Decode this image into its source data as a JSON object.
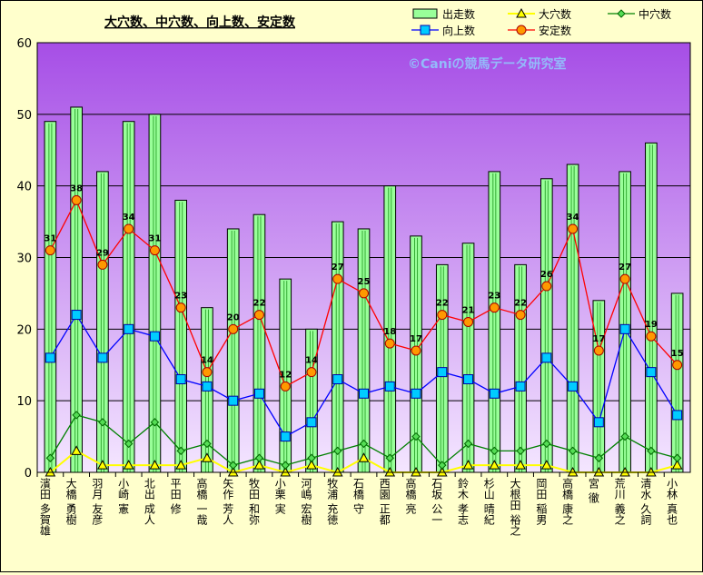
{
  "chart_data": {
    "type": "bar",
    "title": "大穴数、中穴数、向上数、安定数",
    "watermark": "©Caniの競馬データ研究室",
    "ylim": [
      0,
      60
    ],
    "yticks": [
      0,
      10,
      20,
      30,
      40,
      50,
      60
    ],
    "grid": true,
    "legend_position": "top-right",
    "categories": [
      "濱田 多賀雄",
      "大橋 勇樹",
      "羽月 友彦",
      "小崎 憲",
      "北出 成人",
      "平田 修",
      "高橋 一哉",
      "矢作 芳人",
      "牧田 和弥",
      "小栗 実",
      "河嶋 宏樹",
      "牧浦 充徳",
      "石橋 守",
      "西園 正都",
      "高橋 亮",
      "石坂 公一",
      "鈴木 孝志",
      "杉山 晴紀",
      "大根田 裕之",
      "岡田 稲男",
      "高橋 康之",
      "宮 徹",
      "荒川 義之",
      "清水 久詞",
      "小林 真也"
    ],
    "series": [
      {
        "name": "出走数",
        "type": "bar",
        "color": "#99ff99",
        "values": [
          49,
          51,
          42,
          49,
          50,
          38,
          23,
          34,
          36,
          27,
          20,
          35,
          34,
          40,
          33,
          29,
          32,
          42,
          29,
          41,
          43,
          24,
          42,
          46,
          25
        ]
      },
      {
        "name": "大穴数",
        "type": "line",
        "color": "#ffff00",
        "values": [
          0,
          3,
          1,
          1,
          1,
          1,
          2,
          0,
          1,
          0,
          1,
          0,
          2,
          0,
          0,
          0,
          1,
          1,
          1,
          1,
          0,
          0,
          0,
          0,
          1
        ]
      },
      {
        "name": "中穴数",
        "type": "line",
        "color": "#008000",
        "values": [
          2,
          8,
          7,
          4,
          7,
          3,
          4,
          1,
          2,
          1,
          2,
          3,
          4,
          2,
          5,
          1,
          4,
          3,
          3,
          4,
          3,
          2,
          5,
          3,
          2
        ]
      },
      {
        "name": "向上数",
        "type": "line",
        "color": "#0000ff",
        "values": [
          16,
          22,
          16,
          20,
          19,
          13,
          12,
          10,
          11,
          5,
          7,
          13,
          11,
          12,
          11,
          14,
          13,
          11,
          12,
          16,
          12,
          7,
          20,
          14,
          8
        ]
      },
      {
        "name": "安定数",
        "type": "line",
        "color": "#ff0000",
        "values": [
          31,
          38,
          29,
          34,
          31,
          23,
          14,
          20,
          22,
          12,
          14,
          27,
          25,
          18,
          17,
          22,
          21,
          23,
          22,
          26,
          34,
          17,
          27,
          19,
          15
        ]
      }
    ]
  }
}
